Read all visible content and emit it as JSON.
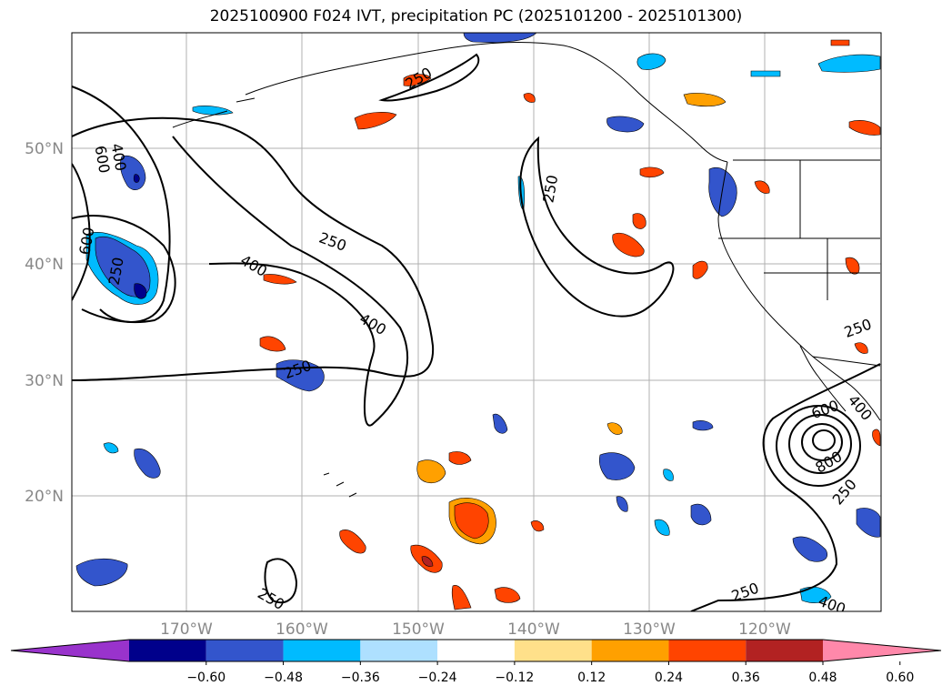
{
  "title": "2025100900 F024 IVT, precipitation PC (2025101200 - 2025101300)",
  "map": {
    "lon_labels": [
      "170°W",
      "160°W",
      "150°W",
      "140°W",
      "130°W",
      "120°W"
    ],
    "lat_labels": [
      "50°N",
      "40°N",
      "30°N",
      "20°N"
    ],
    "ivt_contour_levels": [
      250,
      400,
      600,
      800
    ],
    "contour_labels": [
      {
        "text": "250"
      },
      {
        "text": "600"
      },
      {
        "text": "400"
      },
      {
        "text": "600"
      },
      {
        "text": "250"
      },
      {
        "text": "250"
      },
      {
        "text": "400"
      },
      {
        "text": "400"
      },
      {
        "text": "250"
      },
      {
        "text": "250"
      },
      {
        "text": "250"
      },
      {
        "text": "600"
      },
      {
        "text": "400"
      },
      {
        "text": "800"
      },
      {
        "text": "250"
      },
      {
        "text": "250"
      },
      {
        "text": "400"
      },
      {
        "text": "250"
      }
    ]
  },
  "colorbar": {
    "ticks": [
      "−0.60",
      "−0.48",
      "−0.36",
      "−0.24",
      "−0.12",
      "0.12",
      "0.24",
      "0.36",
      "0.48",
      "0.60"
    ],
    "colors": [
      "#9933cc",
      "#00008b",
      "#3355cc",
      "#00bbff",
      "#aee0ff",
      "#ffffff",
      "#ffe08a",
      "#ffa000",
      "#ff4400",
      "#b22222",
      "#ff88aa"
    ],
    "range": [
      -0.72,
      0.72
    ]
  },
  "palette": {
    "negative_dark": "#00008b",
    "negative_mid": "#3355cc",
    "negative_light": "#00bbff",
    "negative_pale": "#aee0ff",
    "positive_pale": "#ffe08a",
    "positive_mid": "#ffa000",
    "positive_strong": "#ff4400",
    "positive_dark": "#b22222"
  }
}
